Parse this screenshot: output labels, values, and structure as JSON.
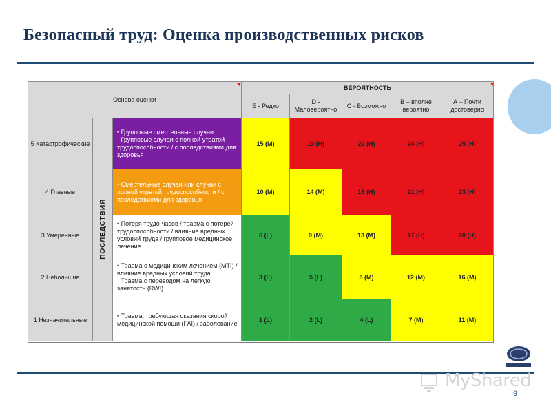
{
  "slide": {
    "title": "Безопасный труд: Оценка производственных рисков",
    "page_number": "9",
    "watermark": "MyShared",
    "colors": {
      "title": "#1d3557",
      "rule": "#1e4a76",
      "yellow": "#ffff00",
      "red": "#e8141b",
      "green": "#2eaa47",
      "purple": "#7a1fa2",
      "orange": "#f39c12",
      "gray": "#d9d9d9"
    }
  },
  "matrix": {
    "basis_header": "Основа оценки",
    "probability_header": "ВЕРОЯТНОСТЬ",
    "consequences_label": "ПОСЛЕДСТВИЯ",
    "probability_columns": [
      "Е - Редко",
      "D - Маловероятно",
      "С - Возможно",
      "В – вполне вероятно",
      "А – Почти достоверно"
    ],
    "rows": [
      {
        "severity": "5 Катастрофические",
        "style": "purple",
        "description": [
          "•  Групповые смертельные случаи",
          "·  Групповые случаи с полной утратой трудоспособности / с последствиями для здоровья"
        ],
        "cells": [
          {
            "label": "15 (M)",
            "level": "y"
          },
          {
            "label": "19 (H)",
            "level": "r"
          },
          {
            "label": "22 (H)",
            "level": "r"
          },
          {
            "label": "24 (H)",
            "level": "r"
          },
          {
            "label": "25 (H)",
            "level": "r"
          }
        ]
      },
      {
        "severity": "4 Главные",
        "style": "orange",
        "description": [
          "•  Смертельные случаи или случаи с полной утратой трудоспособности / с последствиями для здоровья"
        ],
        "cells": [
          {
            "label": "10 (M)",
            "level": "y"
          },
          {
            "label": "14 (M)",
            "level": "y"
          },
          {
            "label": "18 (H)",
            "level": "r"
          },
          {
            "label": "21 (H)",
            "level": "r"
          },
          {
            "label": "23 (H)",
            "level": "r"
          }
        ]
      },
      {
        "severity": "3 Умеренные",
        "style": "white",
        "description": [
          "•  Потеря трудо-часов / травма с потерей трудоспособности / влияние вредных условий труда / групповое медицинское лечение"
        ],
        "cells": [
          {
            "label": "6 (L)",
            "level": "g"
          },
          {
            "label": "9 (M)",
            "level": "y"
          },
          {
            "label": "13 (M)",
            "level": "y"
          },
          {
            "label": "17 (H)",
            "level": "r"
          },
          {
            "label": "20 (H)",
            "level": "r"
          }
        ]
      },
      {
        "severity": "2 Небольшие",
        "style": "white",
        "description": [
          "•  Травма с медицинским лечением (MTI) / влияние вредных условий труда",
          "·  Травма с переводом на легкую занятость (RWI)"
        ],
        "cells": [
          {
            "label": "3 (L)",
            "level": "g"
          },
          {
            "label": "5 (L)",
            "level": "g"
          },
          {
            "label": "8 (M)",
            "level": "y"
          },
          {
            "label": "12 (M)",
            "level": "y"
          },
          {
            "label": "16 (M)",
            "level": "y"
          }
        ]
      },
      {
        "severity": "1 Незначительные",
        "style": "white",
        "description": [
          "•  Травма, требующая оказания скорой медицинской помощи (FAI) / заболевание"
        ],
        "cells": [
          {
            "label": "1 (L)",
            "level": "g"
          },
          {
            "label": "2 (L)",
            "level": "g"
          },
          {
            "label": "4 (L)",
            "level": "g"
          },
          {
            "label": "7 (M)",
            "level": "y"
          },
          {
            "label": "11 (M)",
            "level": "y"
          }
        ]
      }
    ]
  }
}
